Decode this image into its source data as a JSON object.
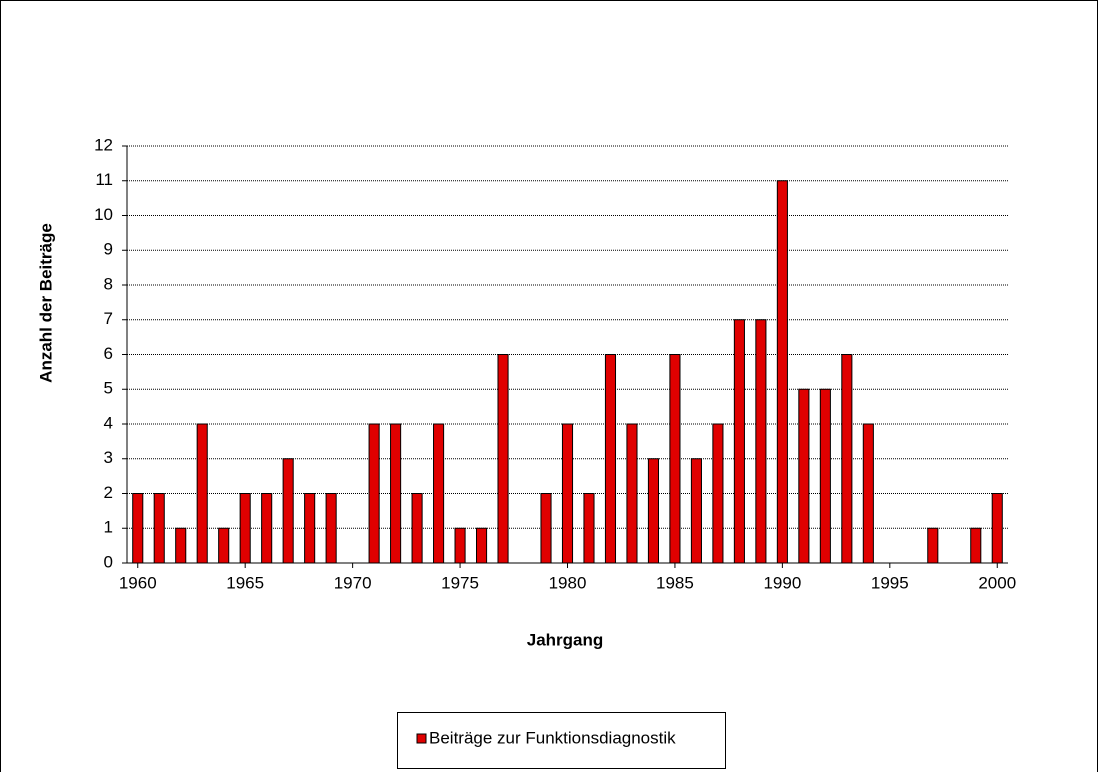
{
  "chart_data": {
    "type": "bar",
    "x_label": "Jahrgang",
    "y_label": "Anzahl der Beiträge",
    "x": [
      1960,
      1961,
      1962,
      1963,
      1964,
      1965,
      1966,
      1967,
      1968,
      1969,
      1970,
      1971,
      1972,
      1973,
      1974,
      1975,
      1976,
      1977,
      1978,
      1979,
      1980,
      1981,
      1982,
      1983,
      1984,
      1985,
      1986,
      1987,
      1988,
      1989,
      1990,
      1991,
      1992,
      1993,
      1994,
      1995,
      1996,
      1997,
      1998,
      1999,
      2000
    ],
    "series": [
      {
        "name": "Beiträge zur Funktionsdiagnostik",
        "color": "#e00000",
        "values": [
          2,
          2,
          1,
          4,
          1,
          2,
          2,
          3,
          2,
          2,
          0,
          4,
          4,
          2,
          4,
          1,
          1,
          6,
          0,
          2,
          4,
          2,
          6,
          4,
          3,
          6,
          3,
          4,
          7,
          7,
          11,
          5,
          5,
          6,
          4,
          0,
          0,
          1,
          0,
          1,
          2
        ]
      }
    ],
    "xlim": [
      1959.5,
      2000.5
    ],
    "xticks": [
      1960,
      1965,
      1970,
      1975,
      1980,
      1985,
      1990,
      1995,
      2000
    ],
    "ylim": [
      0,
      12
    ],
    "yticks": [
      0,
      1,
      2,
      3,
      4,
      5,
      6,
      7,
      8,
      9,
      10,
      11,
      12
    ],
    "grid": true,
    "legend": "bottom"
  }
}
